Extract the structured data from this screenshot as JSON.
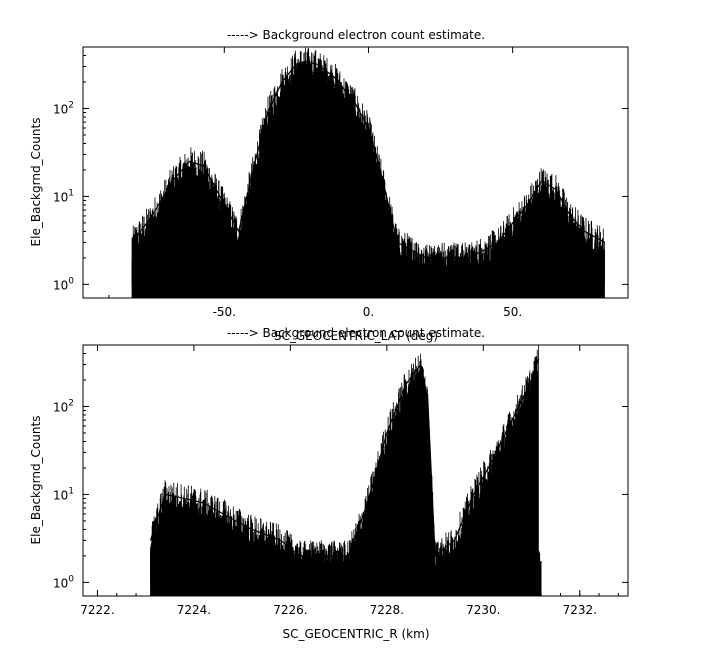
{
  "chart_data": [
    {
      "type": "line",
      "title": "-----> Background electron count estimate.",
      "xlabel": "SC_GEOCENTRIC_LAT (deg)",
      "ylabel": "Ele_Backgrnd_Counts",
      "xlim": [
        -99,
        90
      ],
      "ylim": [
        0.7,
        500
      ],
      "yscale": "log",
      "grid": false,
      "xticks": [
        {
          "v": -50,
          "label": "-50."
        },
        {
          "v": 0,
          "label": "0."
        },
        {
          "v": 50,
          "label": "50."
        }
      ],
      "yticks": [
        {
          "v": 1,
          "base": "10",
          "exp": "0"
        },
        {
          "v": 10,
          "base": "10",
          "exp": "1"
        },
        {
          "v": 100,
          "base": "10",
          "exp": "2"
        }
      ],
      "x_data_range": [
        -82,
        82
      ],
      "series": [
        {
          "x": [
            -82,
            -75,
            -68,
            -62,
            -57,
            -50,
            -45,
            -40,
            -35,
            -30,
            -25,
            -22,
            -18,
            -12,
            -5,
            0,
            5,
            10,
            20,
            35,
            45,
            50,
            55,
            60,
            65,
            70,
            75,
            82
          ],
          "y": [
            3,
            6,
            15,
            25,
            22,
            8,
            4,
            20,
            90,
            200,
            320,
            340,
            320,
            230,
            120,
            60,
            15,
            3,
            2,
            2,
            3,
            5,
            8,
            15,
            12,
            6,
            4,
            3
          ]
        },
        {
          "x": [
            -45,
            -40,
            -35,
            -30,
            -25,
            -20,
            -15,
            -10,
            -5,
            0,
            5,
            10
          ],
          "y": [
            3,
            12,
            50,
            130,
            220,
            260,
            230,
            160,
            80,
            30,
            8,
            2
          ]
        },
        {
          "x": [
            -40,
            -35,
            -30,
            -25,
            -20,
            -15,
            -10,
            -5,
            0,
            5
          ],
          "y": [
            3,
            10,
            35,
            80,
            120,
            110,
            70,
            30,
            10,
            3
          ]
        },
        {
          "x": [
            -35,
            -30,
            -25,
            -20,
            -15,
            -10,
            -5,
            0,
            3
          ],
          "y": [
            3,
            12,
            30,
            45,
            40,
            25,
            10,
            4,
            2
          ]
        },
        {
          "x": [
            -32,
            -28,
            -24,
            -20,
            -16,
            -12,
            -8,
            -4
          ],
          "y": [
            3,
            10,
            22,
            30,
            25,
            14,
            6,
            3
          ]
        },
        {
          "x": [
            -28,
            -25,
            -22,
            -19,
            -16,
            -13,
            -10
          ],
          "y": [
            3,
            8,
            14,
            16,
            12,
            7,
            3
          ]
        }
      ]
    },
    {
      "type": "line",
      "title": "-----> Background electron count estimate.",
      "xlabel": "SC_GEOCENTRIC_R (km)",
      "ylabel": "Ele_Backgrnd_Counts",
      "xlim": [
        7221.7,
        7233.0
      ],
      "ylim": [
        0.7,
        500
      ],
      "yscale": "log",
      "grid": false,
      "xticks": [
        {
          "v": 7222,
          "label": "7222."
        },
        {
          "v": 7224,
          "label": "7224."
        },
        {
          "v": 7226,
          "label": "7226."
        },
        {
          "v": 7228,
          "label": "7228."
        },
        {
          "v": 7230,
          "label": "7230."
        },
        {
          "v": 7232,
          "label": "7232."
        }
      ],
      "yticks": [
        {
          "v": 1,
          "base": "10",
          "exp": "0"
        },
        {
          "v": 10,
          "base": "10",
          "exp": "1"
        },
        {
          "v": 100,
          "base": "10",
          "exp": "2"
        }
      ],
      "x_data_range": [
        7223.1,
        7231.2
      ],
      "series": [
        {
          "x": [
            7223.1,
            7223.4,
            7223.8,
            7224.2,
            7224.6,
            7225.2,
            7225.8,
            7226.2,
            7226.8,
            7227.2,
            7227.6,
            7228.0,
            7228.4,
            7228.7,
            7228.85,
            7229.0,
            7229.4,
            7229.8,
            7230.2,
            7230.6,
            7231.0,
            7231.15
          ],
          "y": [
            3,
            10,
            9,
            8,
            6,
            4,
            3,
            2,
            2,
            2,
            8,
            50,
            180,
            300,
            120,
            2,
            3,
            10,
            25,
            70,
            200,
            350
          ]
        },
        {
          "x": [
            7227.6,
            7228.0,
            7228.4,
            7228.7,
            7228.85
          ],
          "y": [
            5,
            30,
            120,
            240,
            60
          ]
        },
        {
          "x": [
            7227.7,
            7228.0,
            7228.3,
            7228.6,
            7228.8
          ],
          "y": [
            4,
            15,
            60,
            150,
            40
          ]
        },
        {
          "x": [
            7227.8,
            7228.1,
            7228.4,
            7228.6,
            7228.75
          ],
          "y": [
            3,
            8,
            25,
            50,
            15
          ]
        },
        {
          "x": [
            7229.8,
            7230.2,
            7230.5,
            7230.8,
            7231.1
          ],
          "y": [
            5,
            15,
            40,
            100,
            250
          ]
        },
        {
          "x": [
            7229.9,
            7230.3,
            7230.6,
            7230.9,
            7231.1
          ],
          "y": [
            4,
            10,
            25,
            60,
            150
          ]
        }
      ]
    }
  ]
}
